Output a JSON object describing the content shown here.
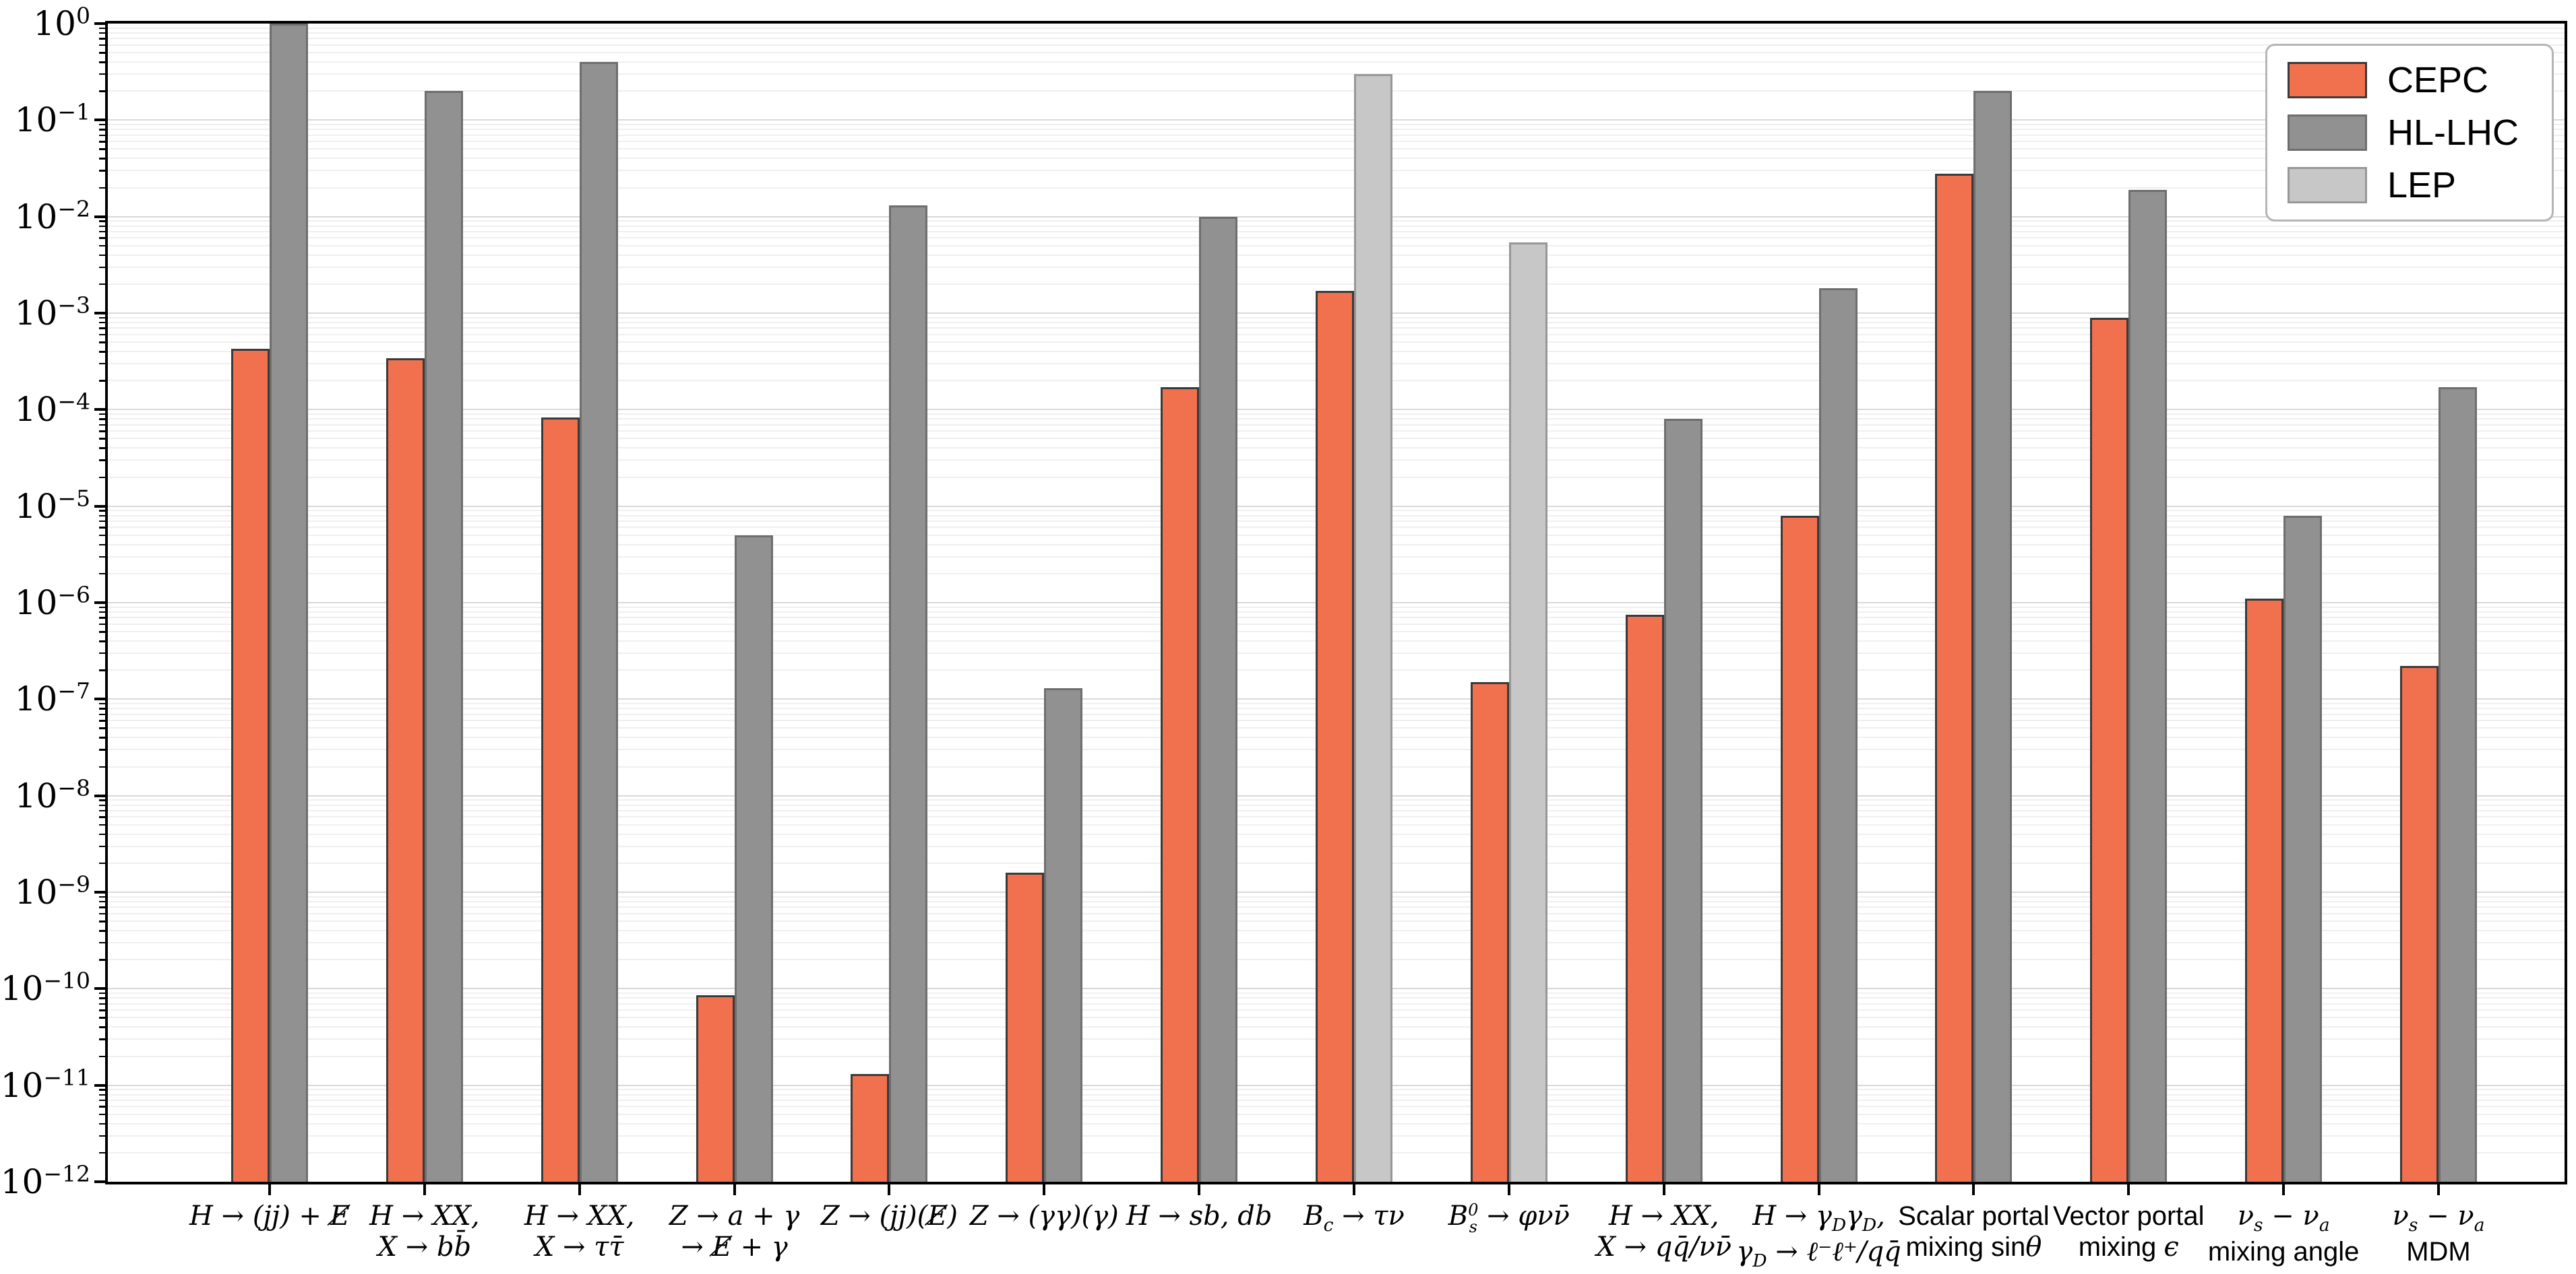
{
  "chart_data": {
    "type": "bar",
    "title": "",
    "xlabel": "",
    "ylabel": "",
    "y_axis": {
      "scale": "log",
      "ylim": [
        1e-12,
        1
      ],
      "tick_exponents": [
        0,
        -1,
        -2,
        -3,
        -4,
        -5,
        -6,
        -7,
        -8,
        -9,
        -10,
        -11,
        -12
      ],
      "minor_ticks": true,
      "grid": true
    },
    "legend": {
      "position": "upper right",
      "entries": [
        {
          "label": "CEPC",
          "fill": "#f1714f",
          "edge": "#3a3a3a"
        },
        {
          "label": "HL-LHC",
          "fill": "#919191",
          "edge": "#6e6e6e"
        },
        {
          "label": "LEP",
          "fill": "#c7c7c7",
          "edge": "#979797"
        }
      ]
    },
    "series_styles": {
      "CEPC": {
        "fill": "#f1714f",
        "edge": "#3a3a3a"
      },
      "HL-LHC": {
        "fill": "#919191",
        "edge": "#6e6e6e"
      },
      "LEP": {
        "fill": "#c7c7c7",
        "edge": "#979797"
      }
    },
    "groups": [
      {
        "slug": "h-jj-met",
        "label_lines": [
          "<span class='m'>H → (jj) + E̸</span>"
        ],
        "bars": [
          {
            "series": "CEPC",
            "value": 0.00043
          },
          {
            "series": "HL-LHC",
            "value": 1.0
          }
        ]
      },
      {
        "slug": "h-xx-bb",
        "label_lines": [
          "<span class='m'>H → XX,</span>",
          "<span class='m'>X → bb̄</span>"
        ],
        "bars": [
          {
            "series": "CEPC",
            "value": 0.00034
          },
          {
            "series": "HL-LHC",
            "value": 0.2
          }
        ]
      },
      {
        "slug": "h-xx-tautau",
        "label_lines": [
          "<span class='m'>H → XX,</span>",
          "<span class='m'>X → ττ̄</span>"
        ],
        "bars": [
          {
            "series": "CEPC",
            "value": 8.3e-05
          },
          {
            "series": "HL-LHC",
            "value": 0.4
          }
        ]
      },
      {
        "slug": "z-a-gamma",
        "label_lines": [
          "<span class='m'>Z → a + γ</span>",
          "<span class='m'>→ E̸ + γ</span>"
        ],
        "bars": [
          {
            "series": "CEPC",
            "value": 8.5e-11
          },
          {
            "series": "HL-LHC",
            "value": 5e-06
          }
        ]
      },
      {
        "slug": "z-jj-met",
        "label_lines": [
          "<span class='m'>Z → (jj)(E̸)</span>"
        ],
        "bars": [
          {
            "series": "CEPC",
            "value": 1.3e-11
          },
          {
            "series": "HL-LHC",
            "value": 0.013
          }
        ]
      },
      {
        "slug": "z-gg-gamma",
        "label_lines": [
          "<span class='m'>Z → (γγ)(γ)</span>"
        ],
        "bars": [
          {
            "series": "CEPC",
            "value": 1.6e-09
          },
          {
            "series": "HL-LHC",
            "value": 1.3e-07
          }
        ]
      },
      {
        "slug": "h-sb-db",
        "label_lines": [
          "<span class='m'>H → sb, db</span>"
        ],
        "bars": [
          {
            "series": "CEPC",
            "value": 0.00017
          },
          {
            "series": "HL-LHC",
            "value": 0.01
          }
        ]
      },
      {
        "slug": "bc-taunu",
        "label_lines": [
          "<span class='m'>B<sub>c</sub> → τν</span>"
        ],
        "bars": [
          {
            "series": "CEPC",
            "value": 0.0017
          },
          {
            "series": "LEP",
            "value": 0.3
          }
        ]
      },
      {
        "slug": "bs0-phinunu",
        "label_lines": [
          "<span class='m'>B<span class='ss'><span class='t'>0</span><span class='b'>s</span></span> → φνν̄</span>"
        ],
        "bars": [
          {
            "series": "CEPC",
            "value": 1.5e-07
          },
          {
            "series": "LEP",
            "value": 0.0054
          }
        ]
      },
      {
        "slug": "h-xx-qq-nunu",
        "label_lines": [
          "<span class='m'>H → XX,</span>",
          "<span class='m'>X → qq̄/νν̄</span>"
        ],
        "bars": [
          {
            "series": "CEPC",
            "value": 7.5e-07
          },
          {
            "series": "HL-LHC",
            "value": 8e-05
          }
        ]
      },
      {
        "slug": "h-gammad-gammad",
        "label_lines": [
          "<span class='m'>H → γ<sub>D</sub>γ<sub>D</sub>,</span>",
          "<span class='m'>γ<sub>D</sub> → ℓ⁻ℓ⁺/qq̄</span>"
        ],
        "bars": [
          {
            "series": "CEPC",
            "value": 8e-06
          },
          {
            "series": "HL-LHC",
            "value": 0.0018
          }
        ]
      },
      {
        "slug": "scalar-portal",
        "label_lines": [
          "Scalar portal",
          "mixing sin<span class='m'>θ</span>"
        ],
        "bars": [
          {
            "series": "CEPC",
            "value": 0.028
          },
          {
            "series": "HL-LHC",
            "value": 0.2
          }
        ]
      },
      {
        "slug": "vector-portal",
        "label_lines": [
          "Vector portal",
          "mixing <span class='m'>ϵ</span>"
        ],
        "bars": [
          {
            "series": "CEPC",
            "value": 0.0009
          },
          {
            "series": "HL-LHC",
            "value": 0.019
          }
        ]
      },
      {
        "slug": "nus-nua-mixing",
        "label_lines": [
          "<span class='m'>ν<sub>s</sub> − ν<sub>a</sub></span>",
          "mixing angle"
        ],
        "bars": [
          {
            "series": "CEPC",
            "value": 1.1e-06
          },
          {
            "series": "HL-LHC",
            "value": 8e-06
          }
        ]
      },
      {
        "slug": "nus-nua-mdm",
        "label_lines": [
          "<span class='m'>ν<sub>s</sub> − ν<sub>a</sub></span>",
          "MDM"
        ],
        "bars": [
          {
            "series": "CEPC",
            "value": 2.2e-07
          },
          {
            "series": "HL-LHC",
            "value": 0.00017
          }
        ]
      }
    ]
  }
}
